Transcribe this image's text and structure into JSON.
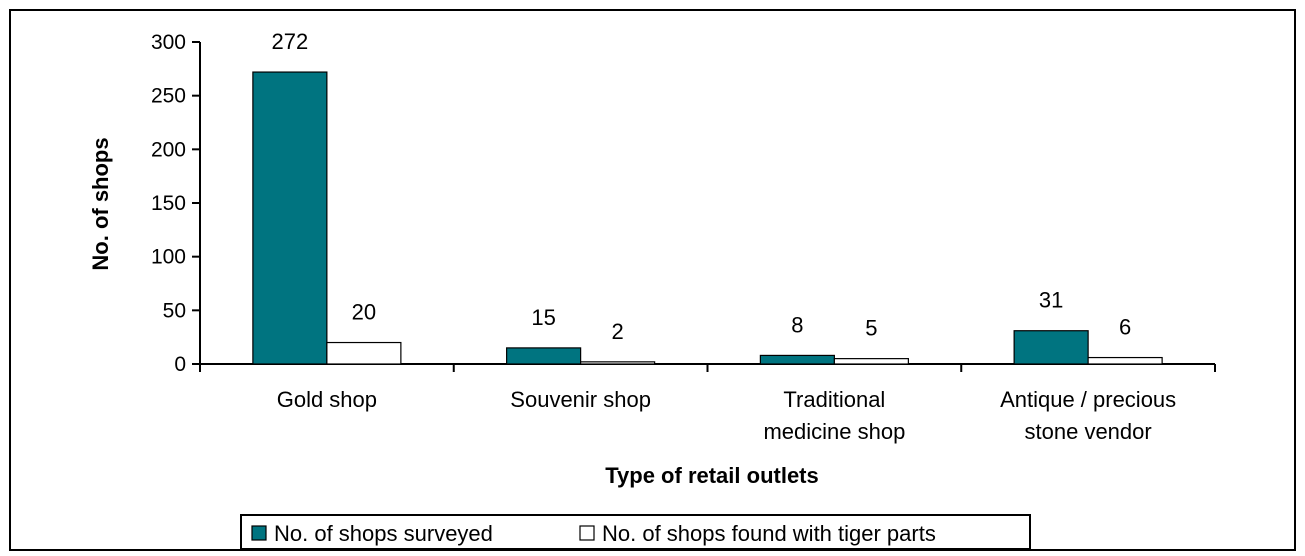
{
  "chart_data": {
    "type": "bar",
    "title": "",
    "xlabel": "Type of retail outlets",
    "ylabel": "No. of shops",
    "ylim": [
      0,
      300
    ],
    "yticks": [
      0,
      50,
      100,
      150,
      200,
      250,
      300
    ],
    "categories": [
      [
        "Gold shop"
      ],
      [
        "Souvenir shop"
      ],
      [
        "Traditional",
        "medicine shop"
      ],
      [
        "Antique / precious",
        "stone vendor"
      ]
    ],
    "series": [
      {
        "name": "No. of shops surveyed",
        "values": [
          272,
          15,
          8,
          31
        ],
        "color": "#007480"
      },
      {
        "name": "No. of shops found with tiger parts",
        "values": [
          20,
          2,
          5,
          6
        ],
        "color": "#ffffff"
      }
    ],
    "grid": false,
    "legend": "bottom"
  }
}
